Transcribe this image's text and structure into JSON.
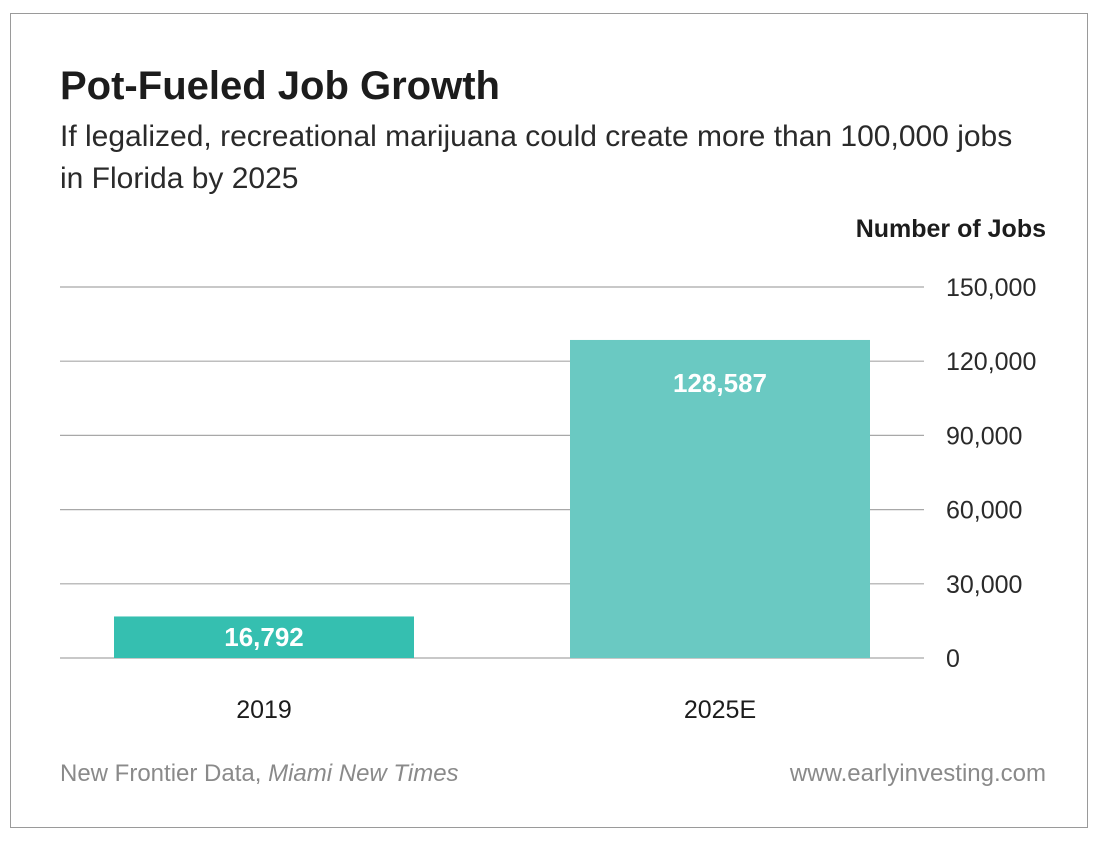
{
  "header": {
    "title": "Pot-Fueled Job Growth",
    "subtitle": "If legalized, recreational marijuana could create more than 100,000 jobs in Florida by 2025"
  },
  "footer": {
    "source_main": "New Frontier Data, ",
    "source_italic": "Miami New Times",
    "site": "www.earlyinvesting.com"
  },
  "chart_data": {
    "type": "bar",
    "categories": [
      "2019",
      "2025E"
    ],
    "values": [
      16792,
      128587
    ],
    "value_labels": [
      "16,792",
      "128,587"
    ],
    "bar_colors": [
      "#35bfb0",
      "#6ac9c2"
    ],
    "ylabel": "Number of Jobs",
    "ylim": [
      0,
      150000
    ],
    "yticks": [
      0,
      30000,
      60000,
      90000,
      120000,
      150000
    ],
    "ytick_labels": [
      "0",
      "30,000",
      "60,000",
      "90,000",
      "120,000",
      "150,000"
    ],
    "axis_position": "right",
    "grid": true,
    "grid_color": "#a8a8a8"
  }
}
